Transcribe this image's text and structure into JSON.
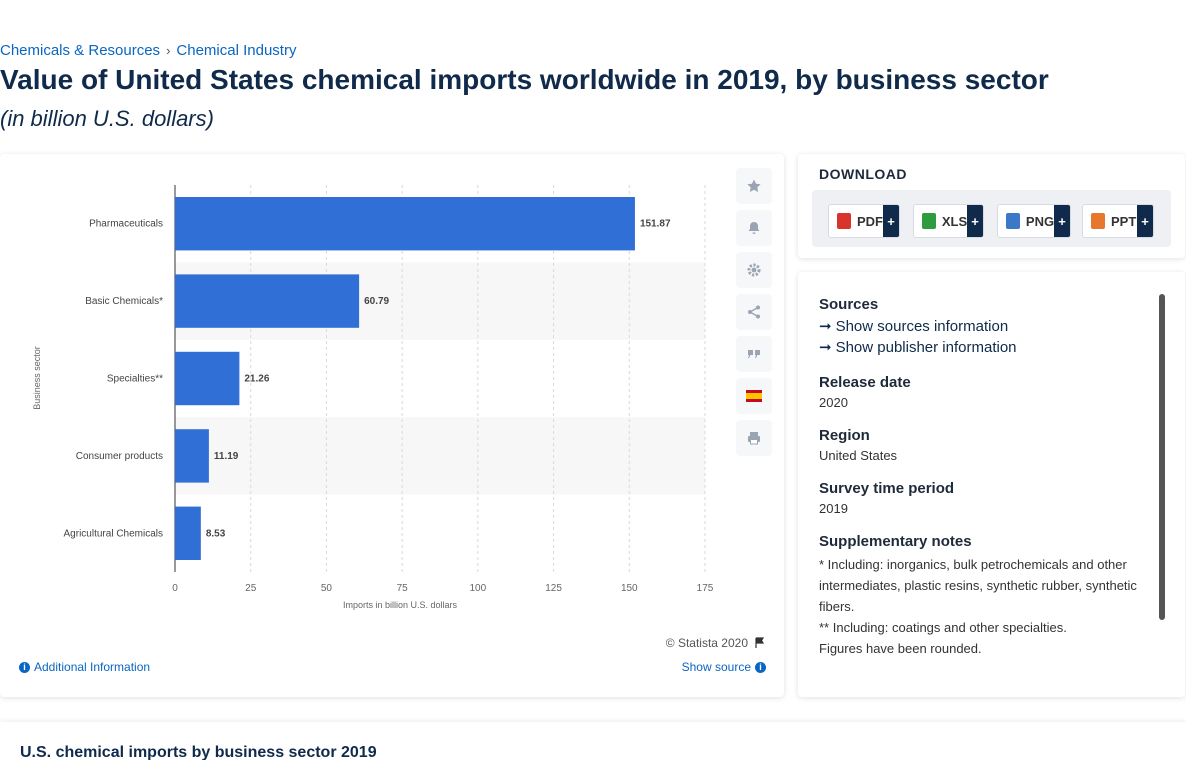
{
  "breadcrumb": {
    "items": [
      "Chemicals & Resources",
      "Chemical Industry"
    ],
    "separator": "›"
  },
  "page": {
    "title": "Value of United States chemical imports worldwide in 2019, by business sector",
    "subtitle": "(in billion U.S. dollars)"
  },
  "chart_data": {
    "type": "bar",
    "orientation": "horizontal",
    "categories": [
      "Pharmaceuticals",
      "Basic Chemicals*",
      "Specialties**",
      "Consumer products",
      "Agricultural Chemicals"
    ],
    "values": [
      151.87,
      60.79,
      21.26,
      11.19,
      8.53
    ],
    "value_labels": [
      "151.87",
      "60.79",
      "21.26",
      "11.19",
      "8.53"
    ],
    "xlabel": "Imports in billion U.S. dollars",
    "ylabel": "Business sector",
    "xlim": [
      0,
      175
    ],
    "xticks": [
      0,
      25,
      50,
      75,
      100,
      125,
      150,
      175
    ],
    "grid": "vertical dashed",
    "bar_color": "#2f6fd6",
    "alt_band_color": "#f7f7f7"
  },
  "toolbar": {
    "icons": [
      "star-icon",
      "bell-icon",
      "gear-icon",
      "share-icon",
      "quote-icon",
      "spain-flag-icon",
      "print-icon"
    ]
  },
  "credit": {
    "text": "© Statista 2020"
  },
  "links": {
    "additional_info": "Additional Information",
    "show_source": "Show source"
  },
  "download": {
    "title": "DOWNLOAD",
    "buttons": [
      {
        "label": "PDF",
        "color": "#d9342b"
      },
      {
        "label": "XLS",
        "color": "#2e9b3f"
      },
      {
        "label": "PNG",
        "color": "#3b78c9"
      },
      {
        "label": "PPT",
        "color": "#e8772e"
      }
    ],
    "plus": "+"
  },
  "details": {
    "sources_heading": "Sources",
    "show_sources": "Show sources information",
    "show_publisher": "Show publisher information",
    "release_heading": "Release date",
    "release_value": "2020",
    "region_heading": "Region",
    "region_value": "United States",
    "survey_heading": "Survey time period",
    "survey_value": "2019",
    "notes_heading": "Supplementary notes",
    "note1": "* Including: inorganics, bulk petrochemicals and other intermediates, plastic resins, synthetic rubber, synthetic fibers.",
    "note2": "** Including: coatings and other specialties.",
    "note3": "Figures have been rounded."
  },
  "bottom": {
    "heading": "U.S. chemical imports by business sector 2019"
  }
}
